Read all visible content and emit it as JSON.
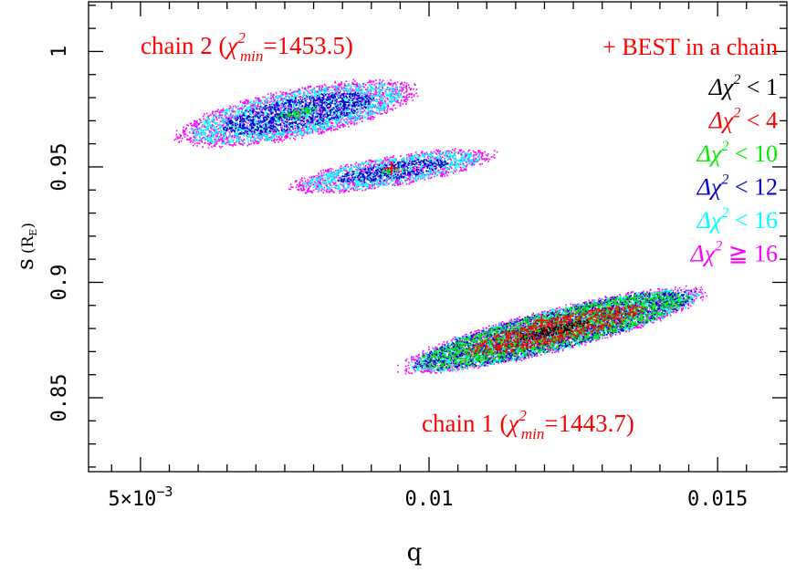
{
  "chart_data": {
    "type": "scatter",
    "xlabel": "q",
    "ylabel": "s",
    "ylabel_sub": "(R",
    "ylabel_subscript": "E",
    "ylabel_close": ")",
    "xlim": [
      0.0041,
      0.0162
    ],
    "ylim": [
      0.818,
      1.0215
    ],
    "x_ticks": [
      {
        "value": 0.005,
        "label": "5×10",
        "sup": "−3"
      },
      {
        "value": 0.01,
        "label": "0.01",
        "sup": ""
      },
      {
        "value": 0.015,
        "label": "0.015",
        "sup": ""
      }
    ],
    "y_ticks": [
      {
        "value": 0.85,
        "label": "0.85"
      },
      {
        "value": 0.9,
        "label": "0.9"
      },
      {
        "value": 0.95,
        "label": "0.95"
      },
      {
        "value": 1.0,
        "label": "1"
      }
    ],
    "annotations": [
      {
        "id": "chain2",
        "prefix": "chain 2 (",
        "chi": "χ",
        "sup": "2",
        "sub": "min",
        "suffix": "=1453.5)",
        "color": "#ff0000"
      },
      {
        "id": "chain1",
        "prefix": "chain 1 (",
        "chi": "χ",
        "sup": "2",
        "sub": "min",
        "suffix": "=1443.7)",
        "color": "#ff0000"
      }
    ],
    "legend_header": {
      "label": "+ BEST in a chain",
      "color": "#ff0000"
    },
    "legend": [
      {
        "delta": "Δ",
        "chi": "χ",
        "sup": "2",
        "rel": " < 1",
        "color": "#000000"
      },
      {
        "delta": "Δ",
        "chi": "χ",
        "sup": "2",
        "rel": " < 4",
        "color": "#ff0000"
      },
      {
        "delta": "Δ",
        "chi": "χ",
        "sup": "2",
        "rel": " < 10",
        "color": "#00ee00"
      },
      {
        "delta": "Δ",
        "chi": "χ",
        "sup": "2",
        "rel": " < 12",
        "color": "#0000cc"
      },
      {
        "delta": "Δ",
        "chi": "χ",
        "sup": "2",
        "rel": " < 16",
        "color": "#00ffff"
      },
      {
        "delta": "Δ",
        "chi": "χ",
        "sup": "2",
        "rel": " ≧ 16",
        "color": "#ff00ff"
      }
    ],
    "best_fits": [
      {
        "chain": "chain 1",
        "q": 0.01195,
        "s": 0.8835,
        "color": "#ff0000"
      },
      {
        "chain": "chain 2",
        "q": 0.00935,
        "s": 0.9495,
        "color": "#ff0000"
      }
    ],
    "chains": [
      {
        "name": "chain 1",
        "blobs": [
          {
            "cq": 0.01215,
            "cs": 0.8795,
            "a": 0.0024,
            "b": 0.0082,
            "rot_deg": -14,
            "layers": [
              {
                "color": "#ff00ff",
                "scale": 1.14
              },
              {
                "color": "#00ffff",
                "scale": 1.08
              },
              {
                "color": "#0000cc",
                "scale": 1.03
              },
              {
                "color": "#00ee00",
                "scale": 1.0
              },
              {
                "color": "#ff0000",
                "scale": 0.66
              },
              {
                "color": "#000000",
                "scale": 0.26
              }
            ]
          }
        ]
      },
      {
        "name": "chain 2",
        "blobs": [
          {
            "cq": 0.0077,
            "cs": 0.9735,
            "a": 0.0019,
            "b": 0.0095,
            "rot_deg": -11,
            "layers": [
              {
                "color": "#ff00ff",
                "scale": 1.12
              },
              {
                "color": "#00ffff",
                "scale": 1.0
              },
              {
                "color": "#0000cc",
                "scale": 0.7
              },
              {
                "color": "#00ee00",
                "scale": 0.2
              }
            ]
          },
          {
            "cq": 0.00935,
            "cs": 0.9485,
            "a": 0.0015,
            "b": 0.0055,
            "rot_deg": -9,
            "layers": [
              {
                "color": "#ff00ff",
                "scale": 1.2
              },
              {
                "color": "#00ffff",
                "scale": 1.05
              },
              {
                "color": "#0000cc",
                "scale": 0.66
              },
              {
                "color": "#00ee00",
                "scale": 0.18
              }
            ]
          }
        ]
      }
    ]
  }
}
